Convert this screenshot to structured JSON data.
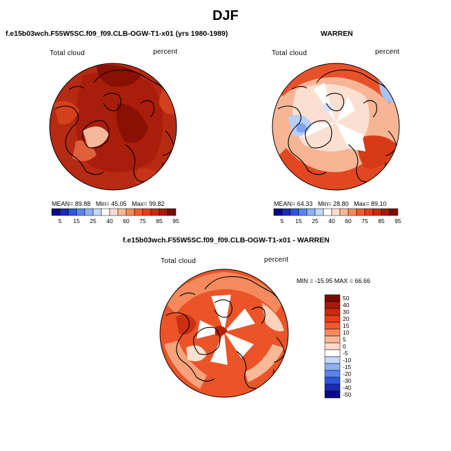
{
  "title": "DJF",
  "panels": [
    {
      "subtitle": "f.e15b03wch.F55W5SC.f09_f09.CLB-OGW-T1-x01 (yrs 1980-1989)",
      "left_label": "Total cloud",
      "right_label": "percent",
      "stats": {
        "mean_label": "MEAN=",
        "mean": "89.88",
        "min_label": "Min=",
        "min": "45.05",
        "max_label": "Max=",
        "max": "99.82"
      },
      "colorbar_labels": [
        "5",
        "15",
        "25",
        "40",
        "60",
        "75",
        "85",
        "95"
      ]
    },
    {
      "subtitle": "WARREN",
      "left_label": "Total cloud",
      "right_label": "percent",
      "stats": {
        "mean_label": "MEAN=",
        "mean": "64.33",
        "min_label": "Min=",
        "min": "28.80",
        "max_label": "Max=",
        "max": "89.10"
      },
      "colorbar_labels": [
        "5",
        "15",
        "25",
        "40",
        "60",
        "75",
        "85",
        "95"
      ]
    },
    {
      "subtitle": "f.e15b03wch.F55W5SC.f09_f09.CLB-OGW-T1-x01 - WARREN",
      "left_label": "Total cloud",
      "right_label": "percent",
      "stats_text": "MIN = -15.95  MAX =  66.66",
      "colorbar_labels": [
        "50",
        "40",
        "30",
        "20",
        "15",
        "10",
        "5",
        "0",
        "-5",
        "-10",
        "-15",
        "-20",
        "-30",
        "-40",
        "-50"
      ]
    }
  ],
  "palette": {
    "abs_colorbar": [
      "#0a0a85",
      "#1c2ab4",
      "#2e55dc",
      "#5a84ec",
      "#8fb0f2",
      "#c4d8f8",
      "#ffffff",
      "#fddccb",
      "#f9b896",
      "#f48a5d",
      "#ef5a30",
      "#e63e1a",
      "#c82c10",
      "#a81a08",
      "#7a0a02"
    ],
    "diff_colorbar": [
      "#7a0a02",
      "#a81a08",
      "#c82c10",
      "#e63e1a",
      "#ef5a30",
      "#f48a5d",
      "#f9b896",
      "#fddccb",
      "#ffffff",
      "#c4d8f8",
      "#8fb0f2",
      "#5a84ec",
      "#2e55dc",
      "#1c2ab4",
      "#0a0a85"
    ]
  }
}
